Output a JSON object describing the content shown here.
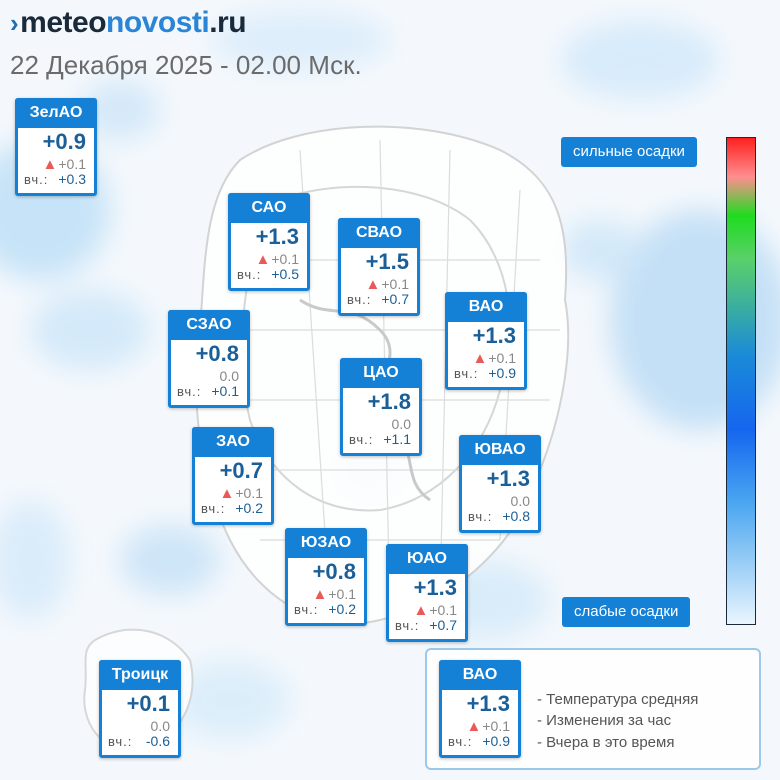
{
  "header": {
    "logo_part1": "meteo",
    "logo_part2": "novosti",
    "logo_part3": ".ru",
    "subtitle": "22 Декабря 2025 - 02.00 Мск."
  },
  "districts": [
    {
      "name": "ЗелАО",
      "temp": "+0.9",
      "change_arrow": "▲",
      "change": "+0.1",
      "yest_label": "вч.:",
      "yest": "+0.3"
    },
    {
      "name": "САО",
      "temp": "+1.3",
      "change_arrow": "▲",
      "change": "+0.1",
      "yest_label": "вч.:",
      "yest": "+0.5"
    },
    {
      "name": "СВАО",
      "temp": "+1.5",
      "change_arrow": "▲",
      "change": "+0.1",
      "yest_label": "вч.:",
      "yest": "+0.7"
    },
    {
      "name": "ВАО",
      "temp": "+1.3",
      "change_arrow": "▲",
      "change": "+0.1",
      "yest_label": "вч.:",
      "yest": "+0.9"
    },
    {
      "name": "СЗАО",
      "temp": "+0.8",
      "change_arrow": "",
      "change": "0.0",
      "yest_label": "вч.:",
      "yest": "+0.1"
    },
    {
      "name": "ЦАО",
      "temp": "+1.8",
      "change_arrow": "",
      "change": "0.0",
      "yest_label": "вч.:",
      "yest": "+1.1"
    },
    {
      "name": "ЗАО",
      "temp": "+0.7",
      "change_arrow": "▲",
      "change": "+0.1",
      "yest_label": "вч.:",
      "yest": "+0.2"
    },
    {
      "name": "ЮВАО",
      "temp": "+1.3",
      "change_arrow": "",
      "change": "0.0",
      "yest_label": "вч.:",
      "yest": "+0.8"
    },
    {
      "name": "ЮЗАО",
      "temp": "+0.8",
      "change_arrow": "▲",
      "change": "+0.1",
      "yest_label": "вч.:",
      "yest": "+0.2"
    },
    {
      "name": "ЮАО",
      "temp": "+1.3",
      "change_arrow": "▲",
      "change": "+0.1",
      "yest_label": "вч.:",
      "yest": "+0.7"
    },
    {
      "name": "Троицк",
      "temp": "+0.1",
      "change_arrow": "",
      "change": "0.0",
      "yest_label": "вч.:",
      "yest": "-0.6"
    }
  ],
  "scale": {
    "top_label": "сильные осадки",
    "bottom_label": "слабые осадки"
  },
  "legend": {
    "example": {
      "name": "ВАО",
      "temp": "+1.3",
      "change_arrow": "▲",
      "change": "+0.1",
      "yest_label": "вч.:",
      "yest": "+0.9"
    },
    "line1": "- Температура средняя",
    "line2": "- Изменения за час",
    "line3": "- Вчера в это время"
  }
}
